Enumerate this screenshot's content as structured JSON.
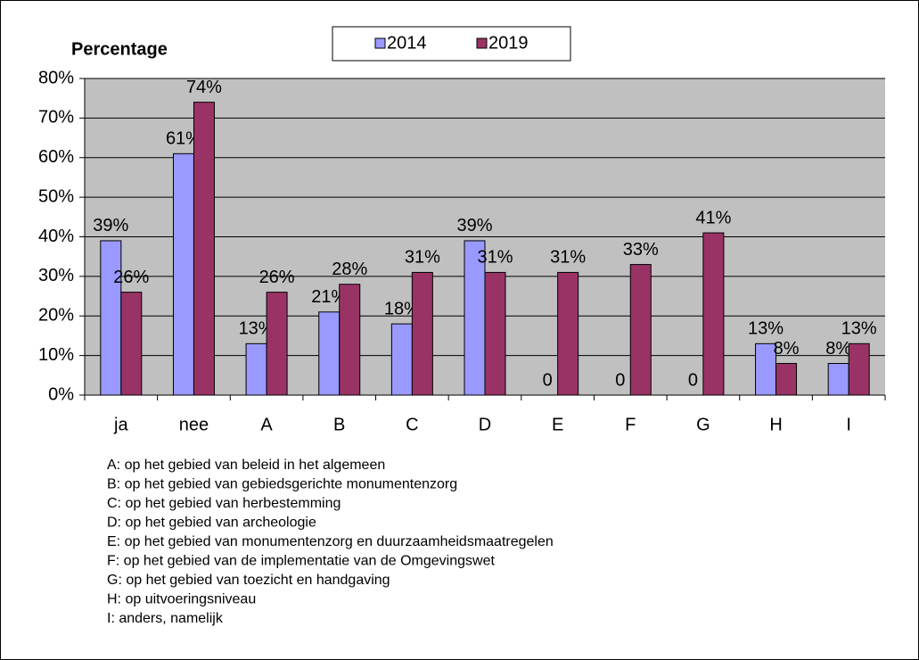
{
  "chart_data": {
    "type": "bar",
    "y_axis_label": "Percentage",
    "categories": [
      "ja",
      "nee",
      "A",
      "B",
      "C",
      "D",
      "E",
      "F",
      "G",
      "H",
      "I"
    ],
    "series": [
      {
        "name": "2014",
        "color": "#9999ff",
        "values": [
          39,
          61,
          13,
          21,
          18,
          39,
          0,
          0,
          0,
          13,
          8
        ],
        "value_labels": [
          "39%",
          "61%",
          "13%",
          "21%",
          "18%",
          "39%",
          "0",
          "0",
          "0",
          "13%",
          "8%"
        ]
      },
      {
        "name": "2019",
        "color": "#993366",
        "values": [
          26,
          74,
          26,
          28,
          31,
          31,
          31,
          33,
          41,
          8,
          13
        ],
        "value_labels": [
          "26%",
          "74%",
          "26%",
          "28%",
          "31%",
          "31%",
          "31%",
          "33%",
          "41%",
          "8%",
          "13%"
        ]
      }
    ],
    "ylim": [
      0,
      80
    ],
    "yticks": [
      {
        "value": 0,
        "label": "0%"
      },
      {
        "value": 10,
        "label": "10%"
      },
      {
        "value": 20,
        "label": "20%"
      },
      {
        "value": 30,
        "label": "30%"
      },
      {
        "value": 40,
        "label": "40%"
      },
      {
        "value": 50,
        "label": "50%"
      },
      {
        "value": 60,
        "label": "60%"
      },
      {
        "value": 70,
        "label": "70%"
      },
      {
        "value": 80,
        "label": "80%"
      }
    ],
    "grid": true,
    "legend": "top",
    "notes": [
      "A: op het gebied van beleid in het algemeen",
      "B: op het gebied van gebiedsgerichte monumentenzorg",
      "C: op het gebied van herbestemming",
      "D: op het gebied van archeologie",
      "E: op het gebied van monumentenzorg en duurzaamheidsmaatregelen",
      "F: op het gebied van de implementatie van de Omgevingswet",
      "G: op het gebied van toezicht en handgaving",
      "H: op uitvoeringsniveau",
      "I: anders, namelijk"
    ]
  }
}
